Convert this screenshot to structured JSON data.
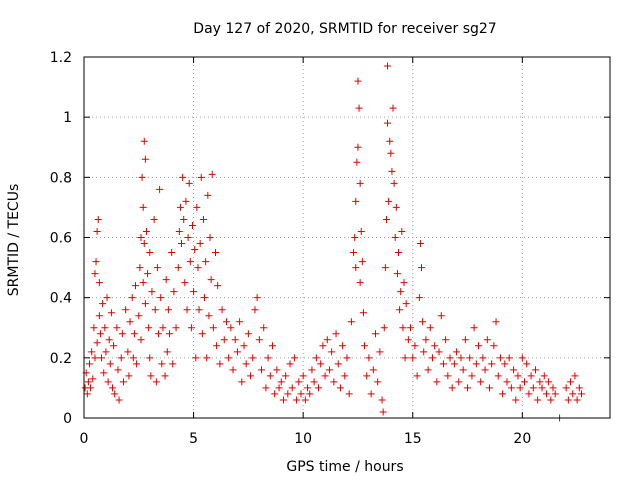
{
  "chart_data": {
    "type": "scatter",
    "title": "Day 127 of 2020, SRMTID for receiver sg27",
    "xlabel": "GPS time / hours",
    "ylabel": "SRMTID / TECUs",
    "xlim": [
      0,
      24
    ],
    "ylim": [
      0,
      1.2
    ],
    "xticks": [
      0,
      5,
      10,
      15,
      20
    ],
    "xtick_labels": [
      "0",
      "5",
      "10",
      "15",
      "20"
    ],
    "yticks": [
      0,
      0.2,
      0.4,
      0.6,
      0.8,
      1.0,
      1.2
    ],
    "ytick_labels": [
      "0",
      "0.2",
      "0.4",
      "0.6",
      "0.8",
      "1",
      "1.2"
    ],
    "grid": true,
    "marker": "plus",
    "color": "#e00000",
    "series": [
      {
        "name": "SRMTID",
        "points": [
          [
            0.05,
            0.1
          ],
          [
            0.1,
            0.15
          ],
          [
            0.15,
            0.08
          ],
          [
            0.2,
            0.12
          ],
          [
            0.25,
            0.18
          ],
          [
            0.3,
            0.1
          ],
          [
            0.35,
            0.22
          ],
          [
            0.4,
            0.13
          ],
          [
            0.45,
            0.3
          ],
          [
            0.5,
            0.2
          ],
          [
            0.5,
            0.48
          ],
          [
            0.55,
            0.52
          ],
          [
            0.6,
            0.25
          ],
          [
            0.6,
            0.62
          ],
          [
            0.65,
            0.66
          ],
          [
            0.7,
            0.34
          ],
          [
            0.7,
            0.45
          ],
          [
            0.75,
            0.28
          ],
          [
            0.8,
            0.2
          ],
          [
            0.85,
            0.38
          ],
          [
            0.9,
            0.15
          ],
          [
            0.95,
            0.3
          ],
          [
            1.0,
            0.22
          ],
          [
            1.05,
            0.4
          ],
          [
            1.1,
            0.12
          ],
          [
            1.15,
            0.26
          ],
          [
            1.2,
            0.18
          ],
          [
            1.25,
            0.35
          ],
          [
            1.3,
            0.1
          ],
          [
            1.35,
            0.24
          ],
          [
            1.4,
            0.08
          ],
          [
            1.5,
            0.3
          ],
          [
            1.55,
            0.16
          ],
          [
            1.6,
            0.06
          ],
          [
            1.7,
            0.2
          ],
          [
            1.75,
            0.28
          ],
          [
            1.8,
            0.12
          ],
          [
            1.9,
            0.36
          ],
          [
            2.0,
            0.22
          ],
          [
            2.05,
            0.14
          ],
          [
            2.1,
            0.32
          ],
          [
            2.2,
            0.4
          ],
          [
            2.25,
            0.2
          ],
          [
            2.3,
            0.28
          ],
          [
            2.35,
            0.44
          ],
          [
            2.4,
            0.18
          ],
          [
            2.5,
            0.34
          ],
          [
            2.55,
            0.5
          ],
          [
            2.6,
            0.6
          ],
          [
            2.6,
            0.26
          ],
          [
            2.65,
            0.8
          ],
          [
            2.7,
            0.7
          ],
          [
            2.7,
            0.45
          ],
          [
            2.75,
            0.92
          ],
          [
            2.75,
            0.58
          ],
          [
            2.8,
            0.86
          ],
          [
            2.8,
            0.38
          ],
          [
            2.85,
            0.62
          ],
          [
            2.9,
            0.48
          ],
          [
            2.95,
            0.3
          ],
          [
            3.0,
            0.2
          ],
          [
            3.0,
            0.55
          ],
          [
            3.05,
            0.14
          ],
          [
            3.1,
            0.42
          ],
          [
            3.2,
            0.66
          ],
          [
            3.25,
            0.36
          ],
          [
            3.3,
            0.12
          ],
          [
            3.35,
            0.5
          ],
          [
            3.4,
            0.28
          ],
          [
            3.45,
            0.76
          ],
          [
            3.5,
            0.4
          ],
          [
            3.55,
            0.18
          ],
          [
            3.6,
            0.3
          ],
          [
            3.7,
            0.14
          ],
          [
            3.75,
            0.46
          ],
          [
            3.8,
            0.22
          ],
          [
            3.85,
            0.36
          ],
          [
            3.9,
            0.28
          ],
          [
            4.0,
            0.55
          ],
          [
            4.05,
            0.18
          ],
          [
            4.1,
            0.42
          ],
          [
            4.2,
            0.3
          ],
          [
            4.3,
            0.5
          ],
          [
            4.35,
            0.62
          ],
          [
            4.4,
            0.7
          ],
          [
            4.45,
            0.58
          ],
          [
            4.5,
            0.8
          ],
          [
            4.55,
            0.66
          ],
          [
            4.6,
            0.45
          ],
          [
            4.65,
            0.72
          ],
          [
            4.7,
            0.36
          ],
          [
            4.75,
            0.6
          ],
          [
            4.8,
            0.78
          ],
          [
            4.85,
            0.52
          ],
          [
            4.9,
            0.3
          ],
          [
            4.95,
            0.64
          ],
          [
            5.0,
            0.42
          ],
          [
            5.05,
            0.56
          ],
          [
            5.1,
            0.2
          ],
          [
            5.15,
            0.7
          ],
          [
            5.2,
            0.5
          ],
          [
            5.25,
            0.36
          ],
          [
            5.3,
            0.58
          ],
          [
            5.35,
            0.8
          ],
          [
            5.4,
            0.28
          ],
          [
            5.45,
            0.66
          ],
          [
            5.5,
            0.4
          ],
          [
            5.55,
            0.52
          ],
          [
            5.6,
            0.2
          ],
          [
            5.65,
            0.74
          ],
          [
            5.7,
            0.34
          ],
          [
            5.75,
            0.6
          ],
          [
            5.8,
            0.46
          ],
          [
            5.85,
            0.81
          ],
          [
            5.9,
            0.3
          ],
          [
            6.0,
            0.55
          ],
          [
            6.05,
            0.24
          ],
          [
            6.1,
            0.44
          ],
          [
            6.2,
            0.18
          ],
          [
            6.3,
            0.36
          ],
          [
            6.4,
            0.26
          ],
          [
            6.5,
            0.32
          ],
          [
            6.6,
            0.2
          ],
          [
            6.7,
            0.3
          ],
          [
            6.8,
            0.16
          ],
          [
            6.9,
            0.26
          ],
          [
            7.0,
            0.22
          ],
          [
            7.1,
            0.32
          ],
          [
            7.2,
            0.12
          ],
          [
            7.3,
            0.24
          ],
          [
            7.4,
            0.18
          ],
          [
            7.5,
            0.28
          ],
          [
            7.6,
            0.14
          ],
          [
            7.7,
            0.2
          ],
          [
            7.8,
            0.36
          ],
          [
            7.9,
            0.4
          ],
          [
            8.0,
            0.26
          ],
          [
            8.1,
            0.16
          ],
          [
            8.2,
            0.3
          ],
          [
            8.3,
            0.1
          ],
          [
            8.4,
            0.2
          ],
          [
            8.5,
            0.14
          ],
          [
            8.6,
            0.24
          ],
          [
            8.7,
            0.08
          ],
          [
            8.8,
            0.16
          ],
          [
            8.9,
            0.1
          ],
          [
            9.0,
            0.12
          ],
          [
            9.1,
            0.06
          ],
          [
            9.2,
            0.14
          ],
          [
            9.3,
            0.08
          ],
          [
            9.4,
            0.18
          ],
          [
            9.5,
            0.1
          ],
          [
            9.6,
            0.2
          ],
          [
            9.7,
            0.06
          ],
          [
            9.8,
            0.12
          ],
          [
            9.9,
            0.08
          ],
          [
            10.0,
            0.14
          ],
          [
            10.1,
            0.06
          ],
          [
            10.2,
            0.1
          ],
          [
            10.3,
            0.08
          ],
          [
            10.4,
            0.16
          ],
          [
            10.5,
            0.12
          ],
          [
            10.6,
            0.2
          ],
          [
            10.7,
            0.1
          ],
          [
            10.8,
            0.18
          ],
          [
            10.9,
            0.24
          ],
          [
            11.0,
            0.14
          ],
          [
            11.1,
            0.26
          ],
          [
            11.2,
            0.16
          ],
          [
            11.3,
            0.22
          ],
          [
            11.4,
            0.12
          ],
          [
            11.5,
            0.28
          ],
          [
            11.6,
            0.18
          ],
          [
            11.7,
            0.1
          ],
          [
            11.8,
            0.24
          ],
          [
            11.9,
            0.14
          ],
          [
            12.0,
            0.2
          ],
          [
            12.1,
            0.08
          ],
          [
            12.2,
            0.32
          ],
          [
            12.3,
            0.55
          ],
          [
            12.35,
            0.6
          ],
          [
            12.4,
            0.72
          ],
          [
            12.4,
            0.5
          ],
          [
            12.45,
            0.85
          ],
          [
            12.5,
            1.12
          ],
          [
            12.5,
            0.9
          ],
          [
            12.55,
            1.03
          ],
          [
            12.6,
            0.78
          ],
          [
            12.6,
            0.45
          ],
          [
            12.65,
            0.62
          ],
          [
            12.7,
            0.52
          ],
          [
            12.75,
            0.35
          ],
          [
            12.8,
            0.24
          ],
          [
            12.9,
            0.14
          ],
          [
            13.0,
            0.2
          ],
          [
            13.1,
            0.08
          ],
          [
            13.2,
            0.16
          ],
          [
            13.3,
            0.28
          ],
          [
            13.4,
            0.12
          ],
          [
            13.5,
            0.22
          ],
          [
            13.6,
            0.06
          ],
          [
            13.65,
            0.02
          ],
          [
            13.7,
            0.3
          ],
          [
            13.75,
            0.5
          ],
          [
            13.8,
            0.66
          ],
          [
            13.85,
            0.98
          ],
          [
            13.85,
            1.17
          ],
          [
            13.9,
            0.72
          ],
          [
            13.95,
            0.92
          ],
          [
            14.0,
            0.88
          ],
          [
            14.05,
            0.82
          ],
          [
            14.1,
            1.03
          ],
          [
            14.15,
            0.78
          ],
          [
            14.2,
            0.6
          ],
          [
            14.25,
            0.7
          ],
          [
            14.3,
            0.48
          ],
          [
            14.35,
            0.55
          ],
          [
            14.4,
            0.36
          ],
          [
            14.45,
            0.42
          ],
          [
            14.5,
            0.62
          ],
          [
            14.55,
            0.3
          ],
          [
            14.6,
            0.45
          ],
          [
            14.65,
            0.2
          ],
          [
            14.7,
            0.38
          ],
          [
            14.8,
            0.26
          ],
          [
            14.9,
            0.3
          ],
          [
            15.0,
            0.2
          ],
          [
            15.1,
            0.24
          ],
          [
            15.2,
            0.14
          ],
          [
            15.3,
            0.4
          ],
          [
            15.35,
            0.58
          ],
          [
            15.4,
            0.5
          ],
          [
            15.45,
            0.32
          ],
          [
            15.5,
            0.22
          ],
          [
            15.6,
            0.26
          ],
          [
            15.7,
            0.16
          ],
          [
            15.8,
            0.3
          ],
          [
            15.9,
            0.2
          ],
          [
            16.0,
            0.24
          ],
          [
            16.1,
            0.12
          ],
          [
            16.2,
            0.22
          ],
          [
            16.3,
            0.34
          ],
          [
            16.4,
            0.18
          ],
          [
            16.5,
            0.26
          ],
          [
            16.6,
            0.14
          ],
          [
            16.7,
            0.2
          ],
          [
            16.8,
            0.1
          ],
          [
            16.9,
            0.18
          ],
          [
            17.0,
            0.22
          ],
          [
            17.1,
            0.12
          ],
          [
            17.2,
            0.2
          ],
          [
            17.3,
            0.16
          ],
          [
            17.4,
            0.26
          ],
          [
            17.5,
            0.1
          ],
          [
            17.6,
            0.2
          ],
          [
            17.7,
            0.14
          ],
          [
            17.8,
            0.3
          ],
          [
            17.9,
            0.18
          ],
          [
            18.0,
            0.24
          ],
          [
            18.1,
            0.12
          ],
          [
            18.2,
            0.2
          ],
          [
            18.3,
            0.16
          ],
          [
            18.4,
            0.26
          ],
          [
            18.5,
            0.1
          ],
          [
            18.6,
            0.18
          ],
          [
            18.7,
            0.24
          ],
          [
            18.8,
            0.32
          ],
          [
            18.9,
            0.14
          ],
          [
            19.0,
            0.2
          ],
          [
            19.1,
            0.08
          ],
          [
            19.2,
            0.18
          ],
          [
            19.3,
            0.12
          ],
          [
            19.4,
            0.2
          ],
          [
            19.5,
            0.1
          ],
          [
            19.6,
            0.16
          ],
          [
            19.7,
            0.06
          ],
          [
            19.8,
            0.14
          ],
          [
            19.9,
            0.1
          ],
          [
            20.0,
            0.2
          ],
          [
            20.1,
            0.12
          ],
          [
            20.2,
            0.18
          ],
          [
            20.3,
            0.08
          ],
          [
            20.4,
            0.14
          ],
          [
            20.5,
            0.1
          ],
          [
            20.6,
            0.16
          ],
          [
            20.7,
            0.06
          ],
          [
            20.8,
            0.12
          ],
          [
            20.9,
            0.1
          ],
          [
            21.0,
            0.14
          ],
          [
            21.1,
            0.08
          ],
          [
            21.2,
            0.12
          ],
          [
            21.3,
            0.06
          ],
          [
            21.4,
            0.1
          ],
          [
            21.5,
            0.08
          ],
          [
            21.7,
            0.0
          ],
          [
            22.0,
            0.1
          ],
          [
            22.1,
            0.06
          ],
          [
            22.2,
            0.12
          ],
          [
            22.3,
            0.08
          ],
          [
            22.4,
            0.14
          ],
          [
            22.5,
            0.06
          ],
          [
            22.6,
            0.1
          ],
          [
            22.7,
            0.08
          ]
        ]
      }
    ]
  }
}
